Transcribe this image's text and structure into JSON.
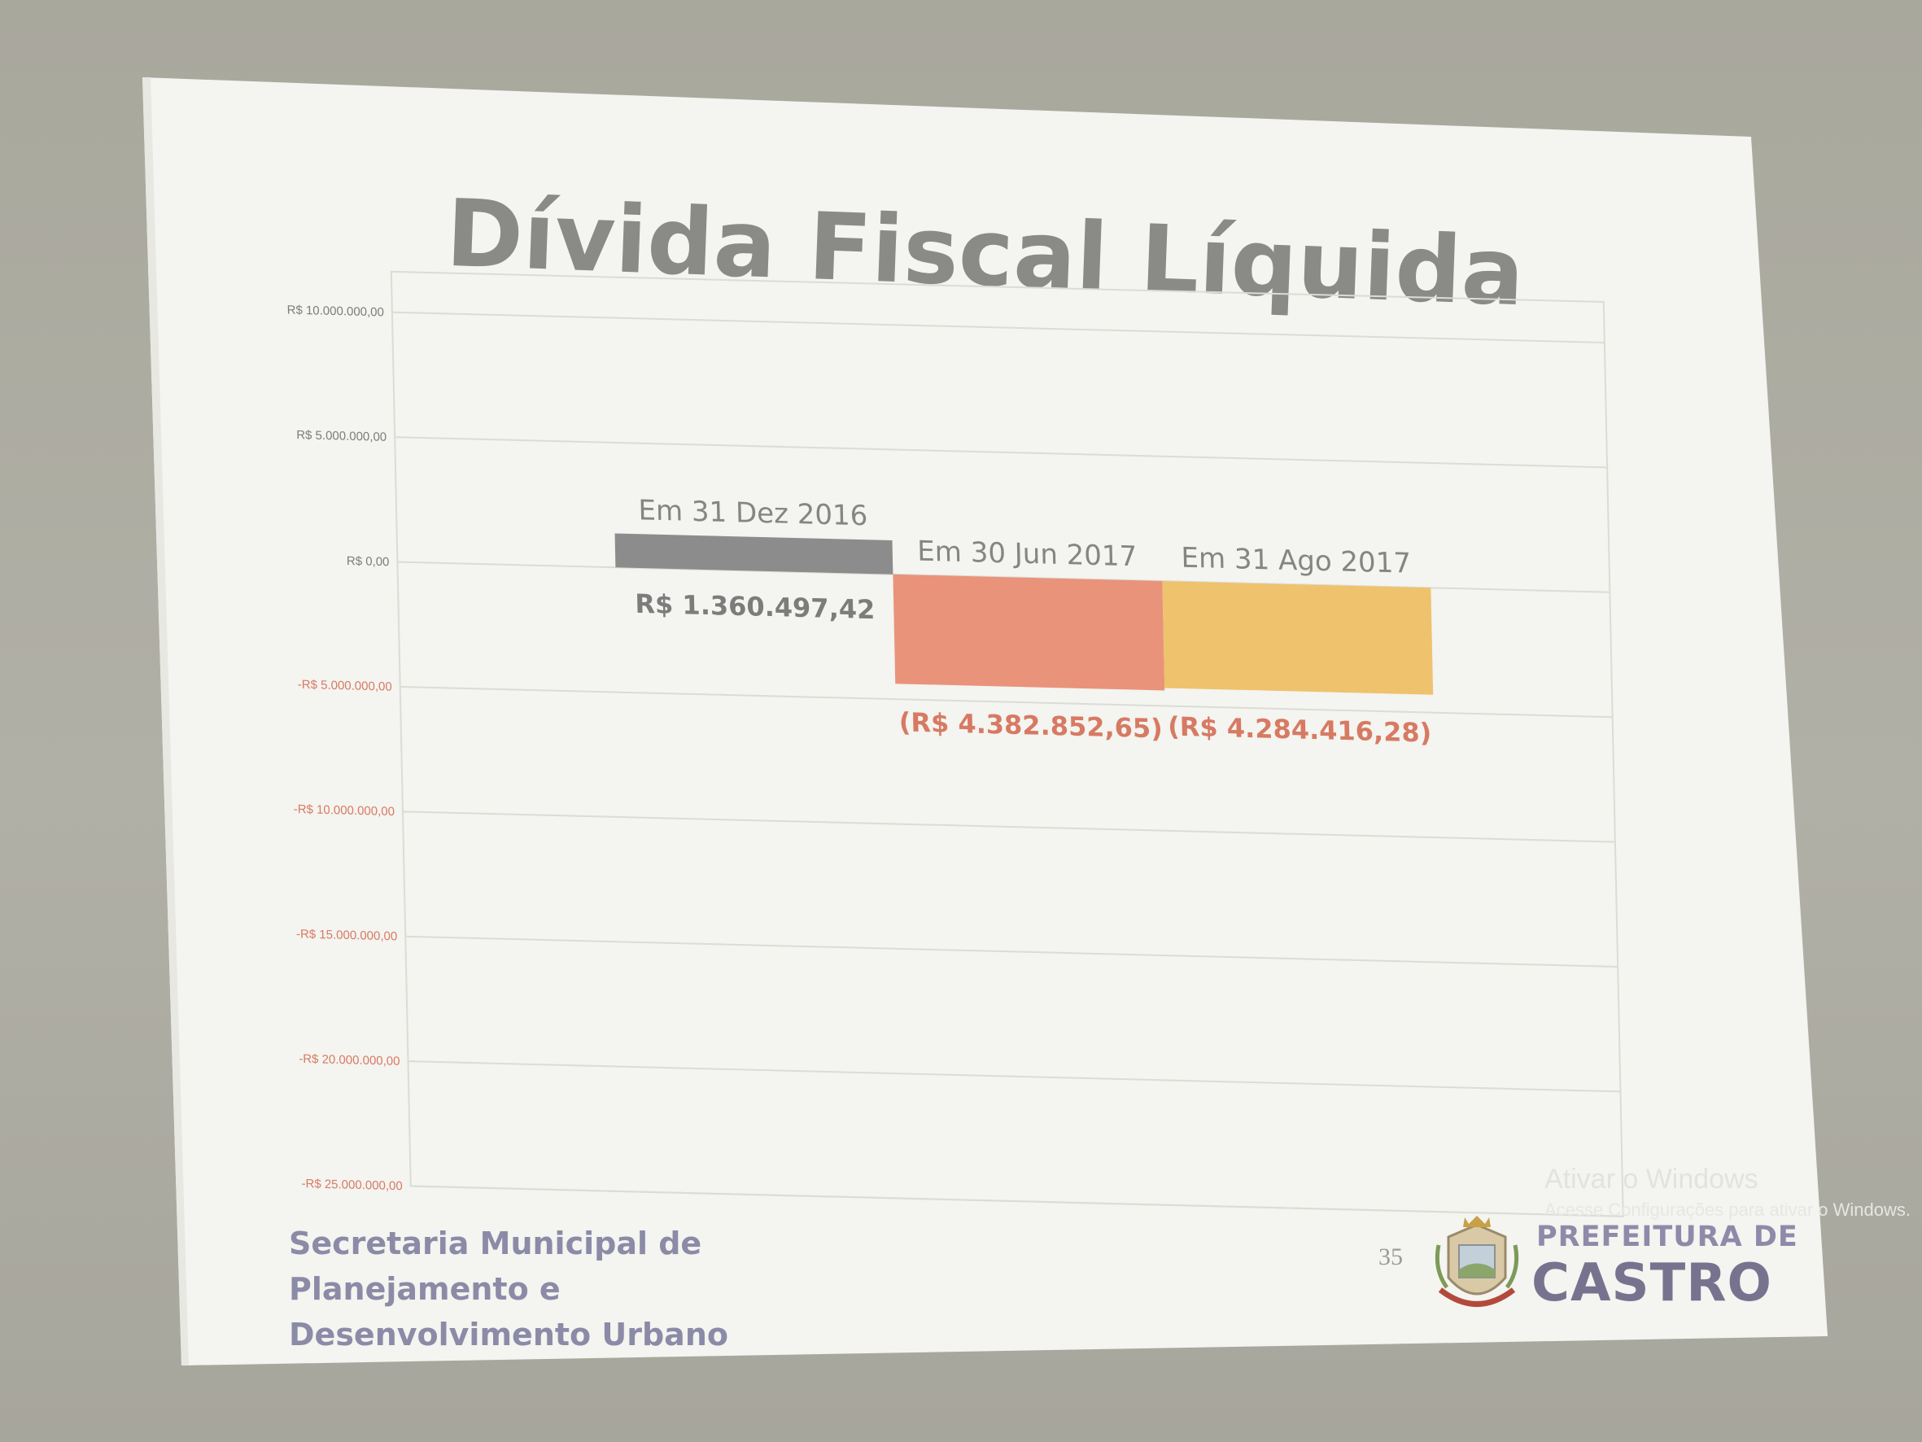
{
  "slide": {
    "title": "Dívida Fiscal Líquida",
    "footer_lines": [
      "Secretaria Municipal de",
      "Planejamento e",
      "Desenvolvimento Urbano"
    ],
    "page_number": "35",
    "brand_top": "PREFEITURA DE",
    "brand_bottom": "CASTRO",
    "watermark_line1": "Ativar o Windows",
    "watermark_line2": "Acesse Configurações para ativar o Windows."
  },
  "colors": {
    "slide_background": "#f4f4f0",
    "title": "#8a8a87",
    "gridline": "#dcdcd6",
    "bar_2016": "#8c8c8c",
    "bar_jun_2017": "#e9937a",
    "bar_ago_2017": "#efc26e",
    "label_negative": "#d77a63",
    "label_positive": "#7c7c7c"
  },
  "chart_data": {
    "type": "bar",
    "title": "Dívida Fiscal Líquida",
    "categories": [
      "Em 31 Dez 2016",
      "Em 30 Jun 2017",
      "Em 31 Ago 2017"
    ],
    "values": [
      1360497.42,
      -4382852.65,
      -4284416.28
    ],
    "data_labels": [
      "R$ 1.360.497,42",
      "(R$ 4.382.852,65)",
      "(R$ 4.284.416,28)"
    ],
    "ylim": [
      -25000000,
      10000000
    ],
    "yticks": [
      10000000,
      5000000,
      0,
      -5000000,
      -10000000,
      -15000000,
      -20000000,
      -25000000
    ],
    "ytick_labels": [
      "R$ 10.000.000,00",
      "R$ 5.000.000,00",
      "R$ 0,00",
      "-R$ 5.000.000,00",
      "-R$ 10.000.000,00",
      "-R$ 15.000.000,00",
      "-R$ 20.000.000,00",
      "-R$ 25.000.000,00"
    ],
    "grid": true,
    "legend": "none",
    "xlabel": "",
    "ylabel": ""
  }
}
